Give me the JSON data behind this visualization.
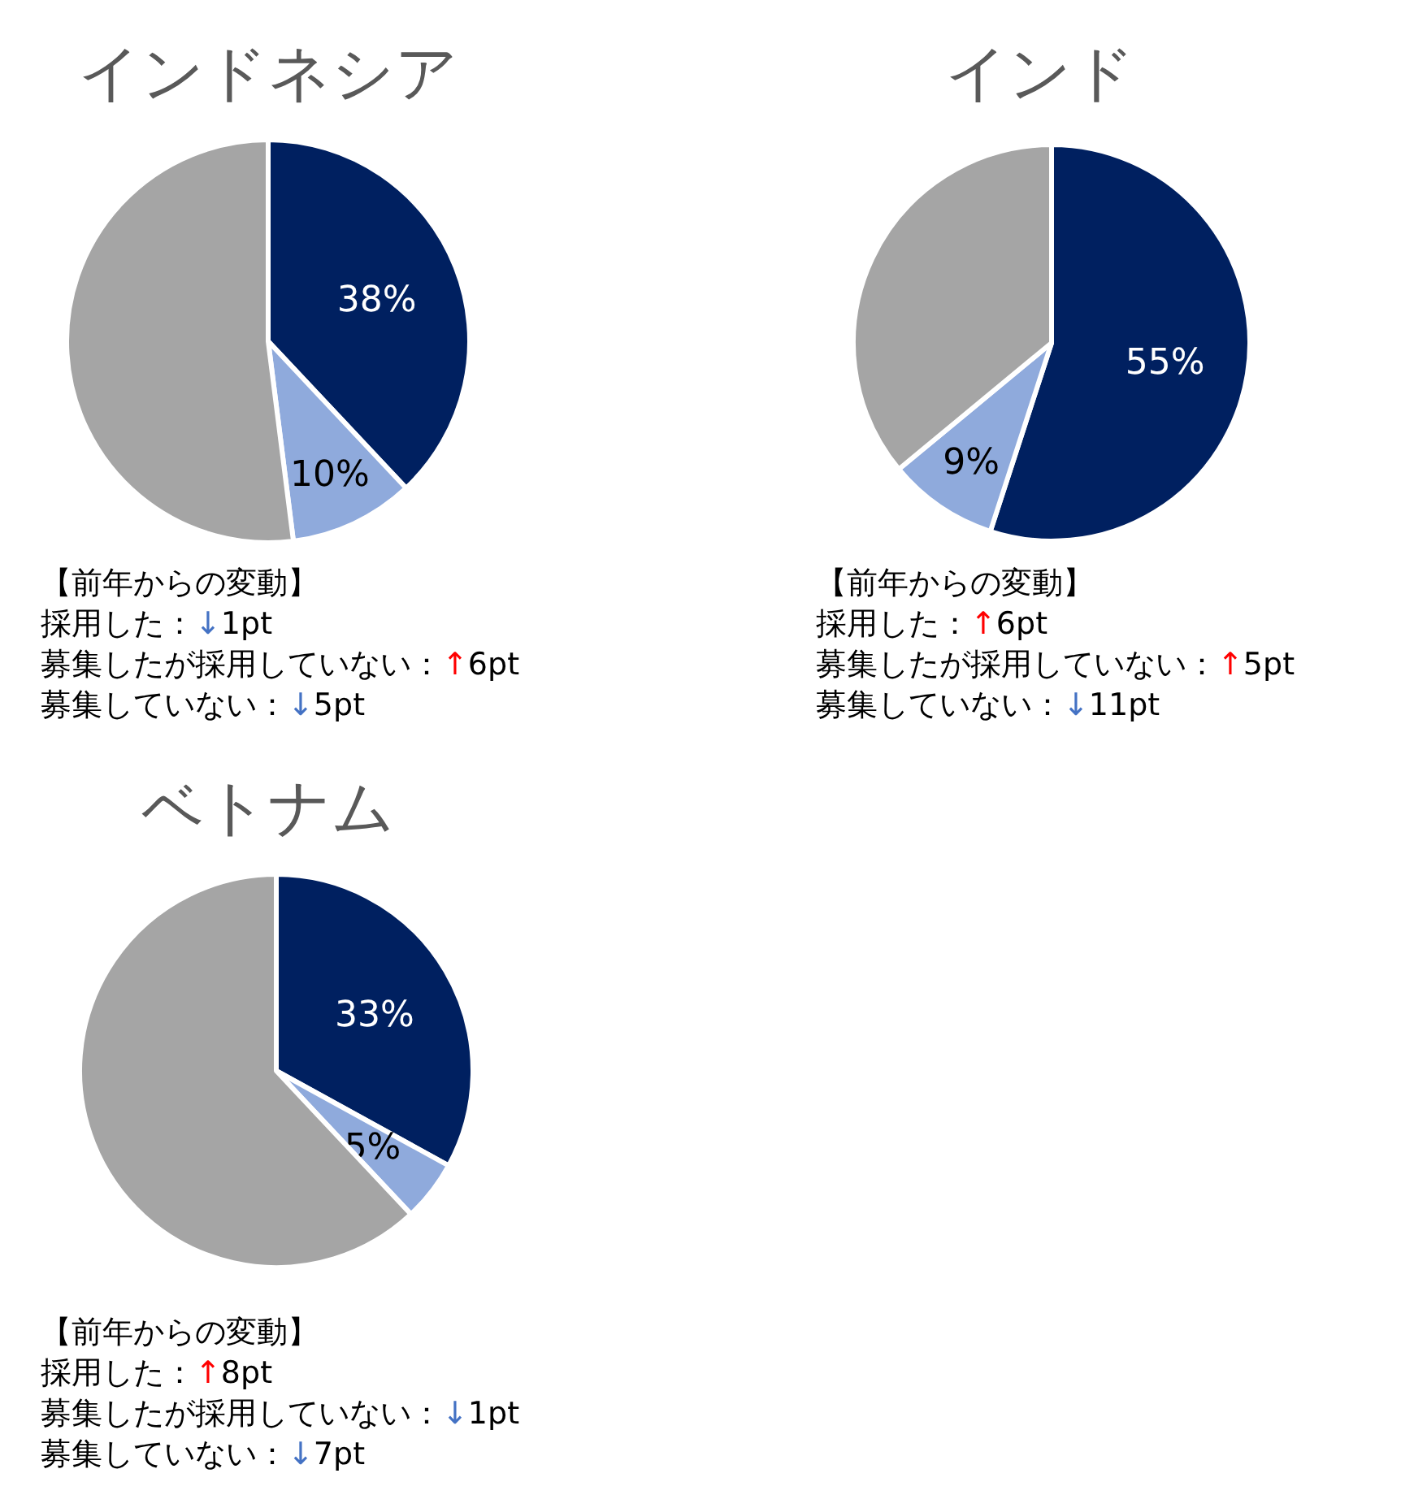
{
  "chart_data": [
    {
      "type": "pie",
      "title": "インドネシア",
      "categories": [
        null,
        null,
        null
      ],
      "values": [
        38,
        10,
        52
      ],
      "colors": [
        "#002060",
        "#8faadc",
        "#a5a5a5"
      ],
      "value_labels": [
        "38%",
        "10%",
        null
      ],
      "annotations": [
        "【前年からの変動】",
        "採用した：↓1pt",
        "募集したが採用していない：↑6pt",
        "募集していない：↓5pt"
      ]
    },
    {
      "type": "pie",
      "title": "インド",
      "categories": [
        null,
        null,
        null
      ],
      "values": [
        55,
        9,
        36
      ],
      "colors": [
        "#002060",
        "#8faadc",
        "#a5a5a5"
      ],
      "value_labels": [
        "55%",
        "9%",
        null
      ],
      "annotations": [
        "【前年からの変動】",
        "採用した：↑6pt",
        "募集したが採用していない：↑5pt",
        "募集していない：↓11pt"
      ]
    },
    {
      "type": "pie",
      "title": "ベトナム",
      "categories": [
        null,
        null,
        null
      ],
      "values": [
        33,
        5,
        62
      ],
      "colors": [
        "#002060",
        "#8faadc",
        "#a5a5a5"
      ],
      "value_labels": [
        "33%",
        "5%",
        null
      ],
      "annotations": [
        "【前年からの変動】",
        "採用した：↑8pt",
        "募集したが採用していない：↓1pt",
        "募集していない：↓7pt"
      ]
    }
  ]
}
